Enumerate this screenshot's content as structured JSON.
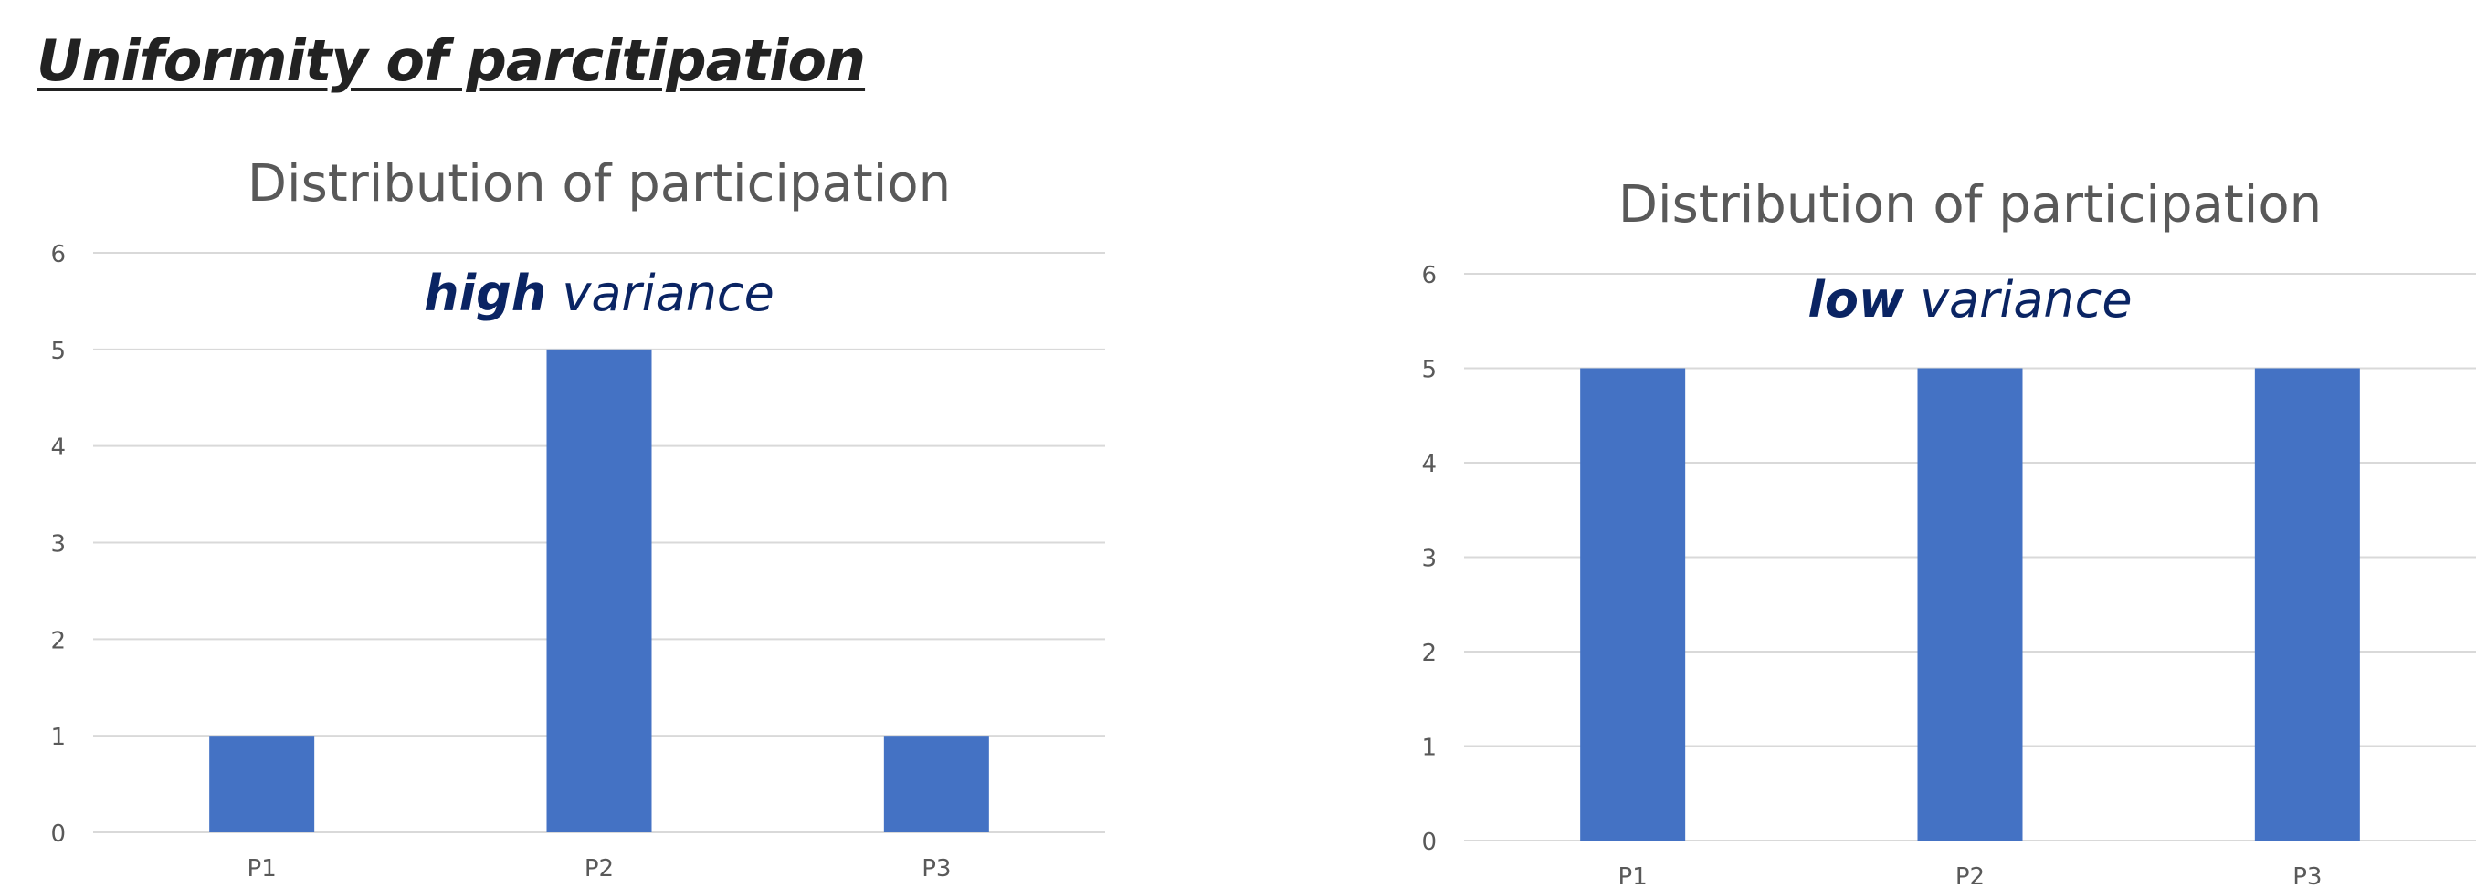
{
  "page": {
    "title": "Uniformity of parcitipation"
  },
  "colors": {
    "bar": "#4472C4",
    "grid": "#D9D9D9",
    "axis_text": "#595959",
    "title_text": "#595959",
    "annotation": "#0A2463",
    "heading": "#222222"
  },
  "chart_data": [
    {
      "type": "bar",
      "title": "Distribution of participation",
      "annotation": {
        "bold": "high",
        "rest": " variance"
      },
      "categories": [
        "P1",
        "P2",
        "P3"
      ],
      "values": [
        1,
        5,
        1
      ],
      "ylim": [
        0,
        6
      ],
      "yticks": [
        0,
        1,
        2,
        3,
        4,
        5,
        6
      ],
      "xlabel": "",
      "ylabel": "",
      "grid": true,
      "legend": "none"
    },
    {
      "type": "bar",
      "title": "Distribution of participation",
      "annotation": {
        "bold": "low",
        "rest": " variance"
      },
      "categories": [
        "P1",
        "P2",
        "P3"
      ],
      "values": [
        5,
        5,
        5
      ],
      "ylim": [
        0,
        6
      ],
      "yticks": [
        0,
        1,
        2,
        3,
        4,
        5,
        6
      ],
      "xlabel": "",
      "ylabel": "",
      "grid": true,
      "legend": "none"
    }
  ]
}
